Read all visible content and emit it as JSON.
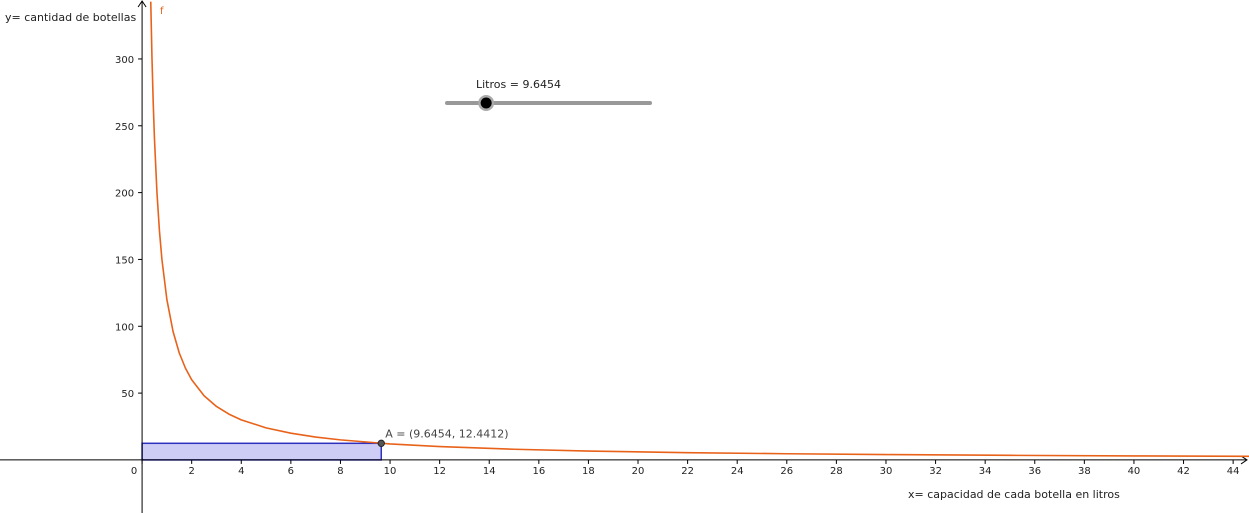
{
  "chart_data": {
    "type": "line",
    "x_label": "x= capacidad de cada botella en litros",
    "y_label": "y= cantidad de botellas",
    "xlim": [
      -5.73,
      44.64
    ],
    "ylim": [
      -39.7,
      344.1
    ],
    "xticks": [
      0,
      2,
      4,
      6,
      8,
      10,
      12,
      14,
      16,
      18,
      20,
      22,
      24,
      26,
      28,
      30,
      32,
      34,
      36,
      38,
      40,
      42,
      44
    ],
    "yticks": [
      50,
      100,
      150,
      200,
      250,
      300
    ],
    "series": [
      {
        "name": "f",
        "color": "#e8621a",
        "x": [
          0.35,
          0.4,
          0.45,
          0.5,
          0.6,
          0.7,
          0.8,
          1,
          1.25,
          1.5,
          1.75,
          2,
          2.5,
          3,
          3.5,
          4,
          5,
          6,
          7,
          8,
          10,
          12,
          15,
          18,
          22,
          26,
          30,
          35,
          40,
          44.64
        ],
        "values": [
          342.9,
          300,
          266.7,
          240,
          200,
          171.4,
          150,
          120,
          96,
          80,
          68.6,
          60,
          48,
          40,
          34.3,
          30,
          24,
          20,
          17.1,
          15,
          12,
          10,
          8,
          6.67,
          5.45,
          4.62,
          4,
          3.43,
          3,
          2.69
        ]
      }
    ],
    "point": {
      "label": "A = (9.6454, 12.4412)",
      "x": 9.6454,
      "y": 12.4412,
      "fill": "#c8c8f4",
      "stroke": "#3030c0"
    },
    "slider": {
      "label": "Litros = 9.6454",
      "value": 9.6454,
      "min": 0,
      "max": 50
    }
  }
}
